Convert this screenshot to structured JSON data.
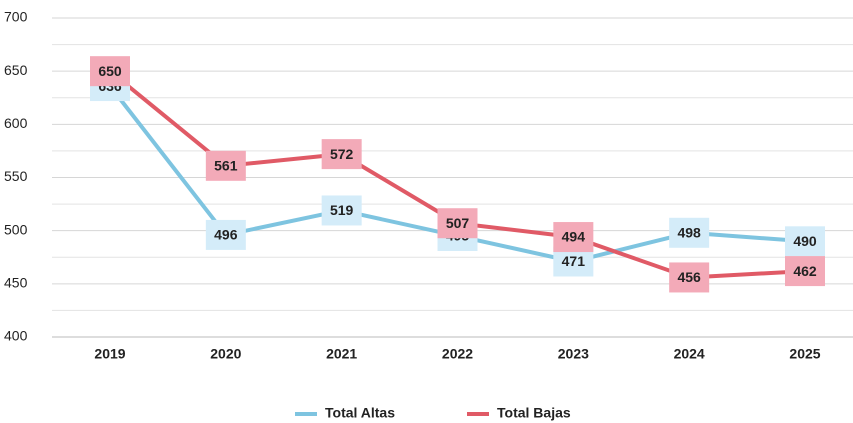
{
  "chart_data": {
    "type": "line",
    "categories": [
      "2019",
      "2020",
      "2021",
      "2022",
      "2023",
      "2024",
      "2025"
    ],
    "series": [
      {
        "name": "Total Altas",
        "color": "#7ec4e0",
        "label_fill": "#d4ecf9",
        "values": [
          636,
          496,
          519,
          495,
          471,
          498,
          490
        ]
      },
      {
        "name": "Total Bajas",
        "color": "#e05a66",
        "label_fill": "#f3aab8",
        "values": [
          650,
          561,
          572,
          507,
          494,
          456,
          462
        ]
      }
    ],
    "ylim": [
      400,
      700
    ],
    "yticks": [
      400,
      450,
      500,
      550,
      600,
      650,
      700
    ],
    "minor_yticks": [
      425,
      475,
      525,
      575,
      625,
      675
    ],
    "grid": true,
    "legend": "bottom"
  }
}
